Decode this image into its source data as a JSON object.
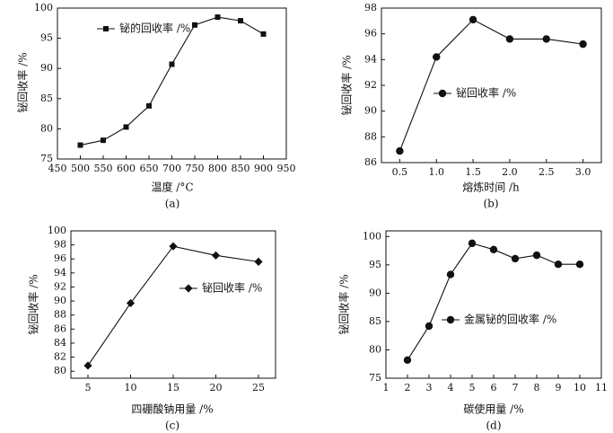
{
  "chart_data": [
    {
      "id": "a",
      "type": "line",
      "caption": "(a)",
      "xlabel": "温度 /°C",
      "ylabel": "铋回收率 /%",
      "xlim": [
        450,
        950
      ],
      "ylim": [
        75,
        100
      ],
      "xticks": [
        450,
        500,
        550,
        600,
        650,
        700,
        750,
        800,
        850,
        900,
        950
      ],
      "yticks": [
        75,
        80,
        85,
        90,
        95,
        100
      ],
      "marker": "square",
      "legend_position": "top-left",
      "series": [
        {
          "name": "铋的回收率 /%",
          "x": [
            500,
            550,
            600,
            650,
            700,
            750,
            800,
            850,
            900
          ],
          "y": [
            77.3,
            78.1,
            80.3,
            83.8,
            90.7,
            97.2,
            98.5,
            97.9,
            95.7
          ]
        }
      ]
    },
    {
      "id": "b",
      "type": "line",
      "caption": "(b)",
      "xlabel": "熔炼时间 /h",
      "ylabel": "铋回收率 /%",
      "xlim": [
        0.25,
        3.25
      ],
      "ylim": [
        86,
        98
      ],
      "xticks": [
        0.5,
        1.0,
        1.5,
        2.0,
        2.5,
        3.0
      ],
      "xtick_labels": [
        "0.5",
        "1.0",
        "1.5",
        "2.0",
        "2.5",
        "3.0"
      ],
      "yticks": [
        86,
        88,
        90,
        92,
        94,
        96,
        98
      ],
      "marker": "circle",
      "legend_position": "center",
      "series": [
        {
          "name": "铋回收率 /%",
          "x": [
            0.5,
            1.0,
            1.5,
            2.0,
            2.5,
            3.0
          ],
          "y": [
            86.9,
            94.2,
            97.1,
            95.6,
            95.6,
            95.2
          ]
        }
      ]
    },
    {
      "id": "c",
      "type": "line",
      "caption": "(c)",
      "xlabel": "四硼酸钠用量 /%",
      "ylabel": "铋回收率 /%",
      "xlim": [
        3,
        27
      ],
      "ylim": [
        79,
        100
      ],
      "xticks": [
        5,
        10,
        15,
        20,
        25
      ],
      "yticks": [
        80,
        82,
        84,
        86,
        88,
        90,
        92,
        94,
        96,
        98,
        100
      ],
      "marker": "diamond",
      "legend_position": "center-right",
      "series": [
        {
          "name": "铋回收率 /%",
          "x": [
            5,
            10,
            15,
            20,
            25
          ],
          "y": [
            80.8,
            89.7,
            97.8,
            96.5,
            95.6
          ]
        }
      ]
    },
    {
      "id": "d",
      "type": "line",
      "caption": "(d)",
      "xlabel": "碳使用量 /%",
      "ylabel": "铋回收率 /%",
      "xlim": [
        1,
        11
      ],
      "ylim": [
        75,
        101
      ],
      "xticks": [
        1,
        2,
        3,
        4,
        5,
        6,
        7,
        8,
        9,
        10,
        11
      ],
      "yticks": [
        75,
        80,
        85,
        90,
        95,
        100
      ],
      "marker": "circle",
      "legend_position": "center-right",
      "series": [
        {
          "name": "金属铋的回收率 /%",
          "x": [
            2,
            3,
            4,
            5,
            6,
            7,
            8,
            9,
            10
          ],
          "y": [
            78.2,
            84.2,
            93.3,
            98.8,
            97.7,
            96.1,
            96.7,
            95.1,
            95.1
          ]
        }
      ]
    }
  ]
}
